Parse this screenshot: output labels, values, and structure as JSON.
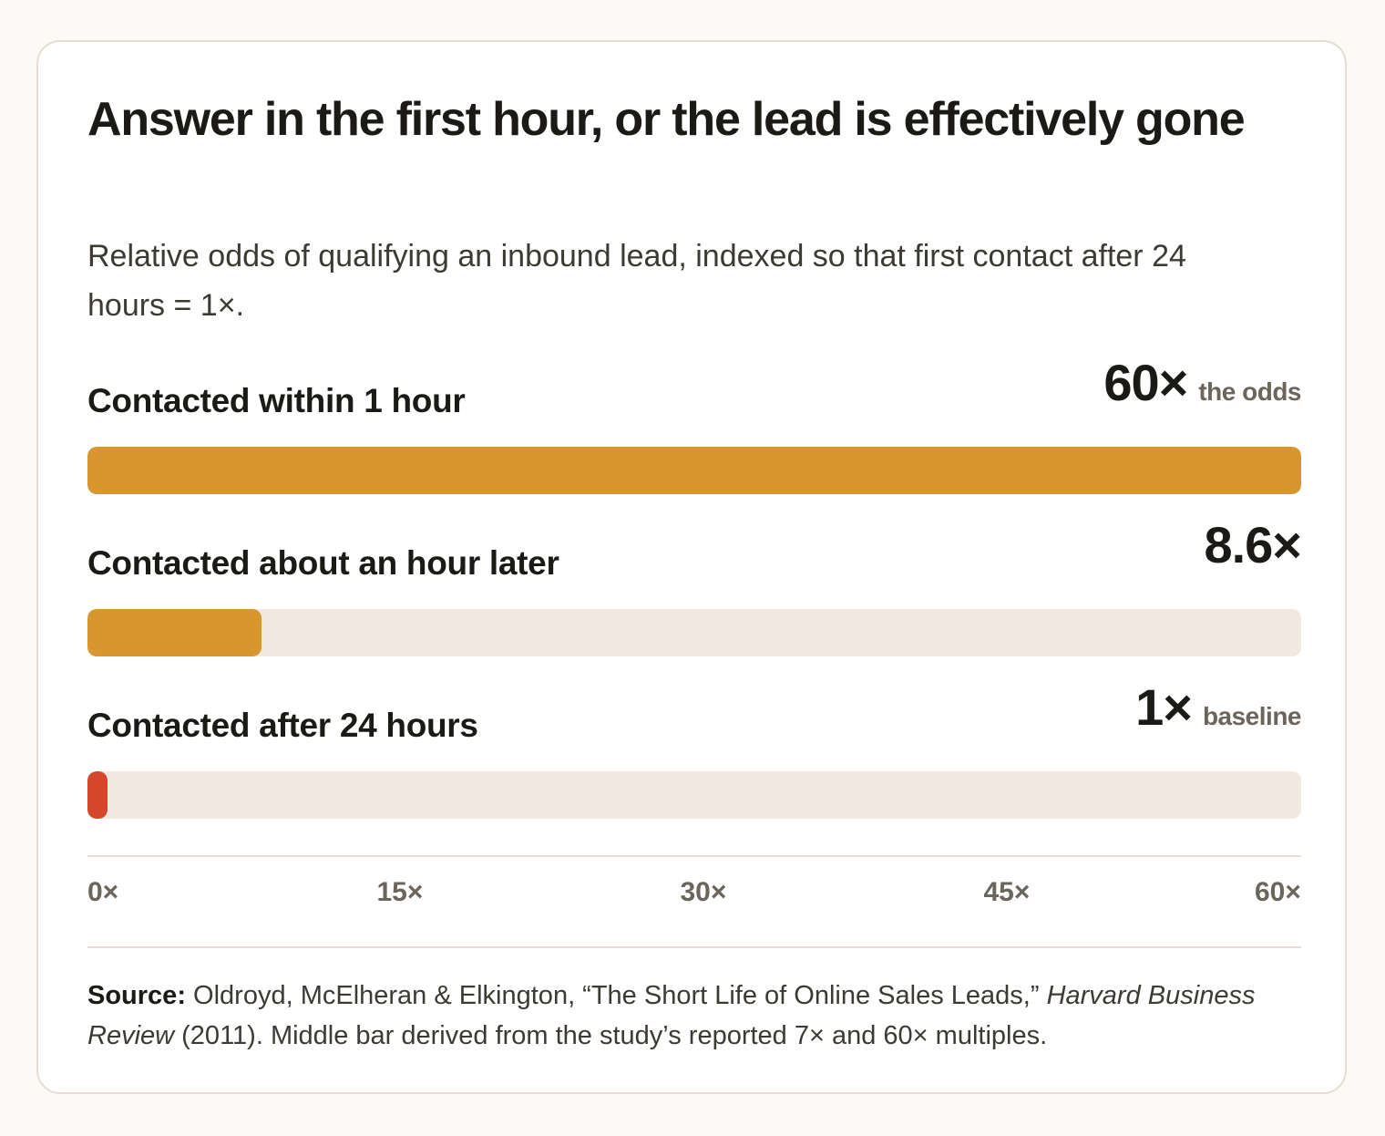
{
  "chart_data": {
    "type": "bar",
    "orientation": "horizontal",
    "title": "Answer in the first hour, or the lead is effectively gone",
    "subtitle": "Relative odds of qualifying an inbound lead, indexed so that first contact after 24 hours = 1×.",
    "categories": [
      "Contacted within 1 hour",
      "Contacted about an hour later",
      "Contacted after 24 hours"
    ],
    "values": [
      60,
      8.6,
      1
    ],
    "value_labels": [
      "60×",
      "8.6×",
      "1×"
    ],
    "value_notes": [
      "the odds",
      "",
      "baseline"
    ],
    "bar_colors": [
      "#d9962f",
      "#d9962f",
      "#d4472a"
    ],
    "track_color": "#f1e9df",
    "xlim": [
      0,
      60
    ],
    "x_ticks": [
      0,
      15,
      30,
      45,
      60
    ],
    "x_tick_labels": [
      "0×",
      "15×",
      "30×",
      "45×",
      "60×"
    ],
    "grid": false,
    "legend": "none"
  },
  "source": {
    "label": "Source:",
    "text_before": " Oldroyd, McElheran & Elkington, “The Short Life of Online Sales Leads,” ",
    "publication": "Harvard Business Review",
    "text_after": " (2011). Middle bar derived from the study’s reported 7× and 60× multiples."
  }
}
